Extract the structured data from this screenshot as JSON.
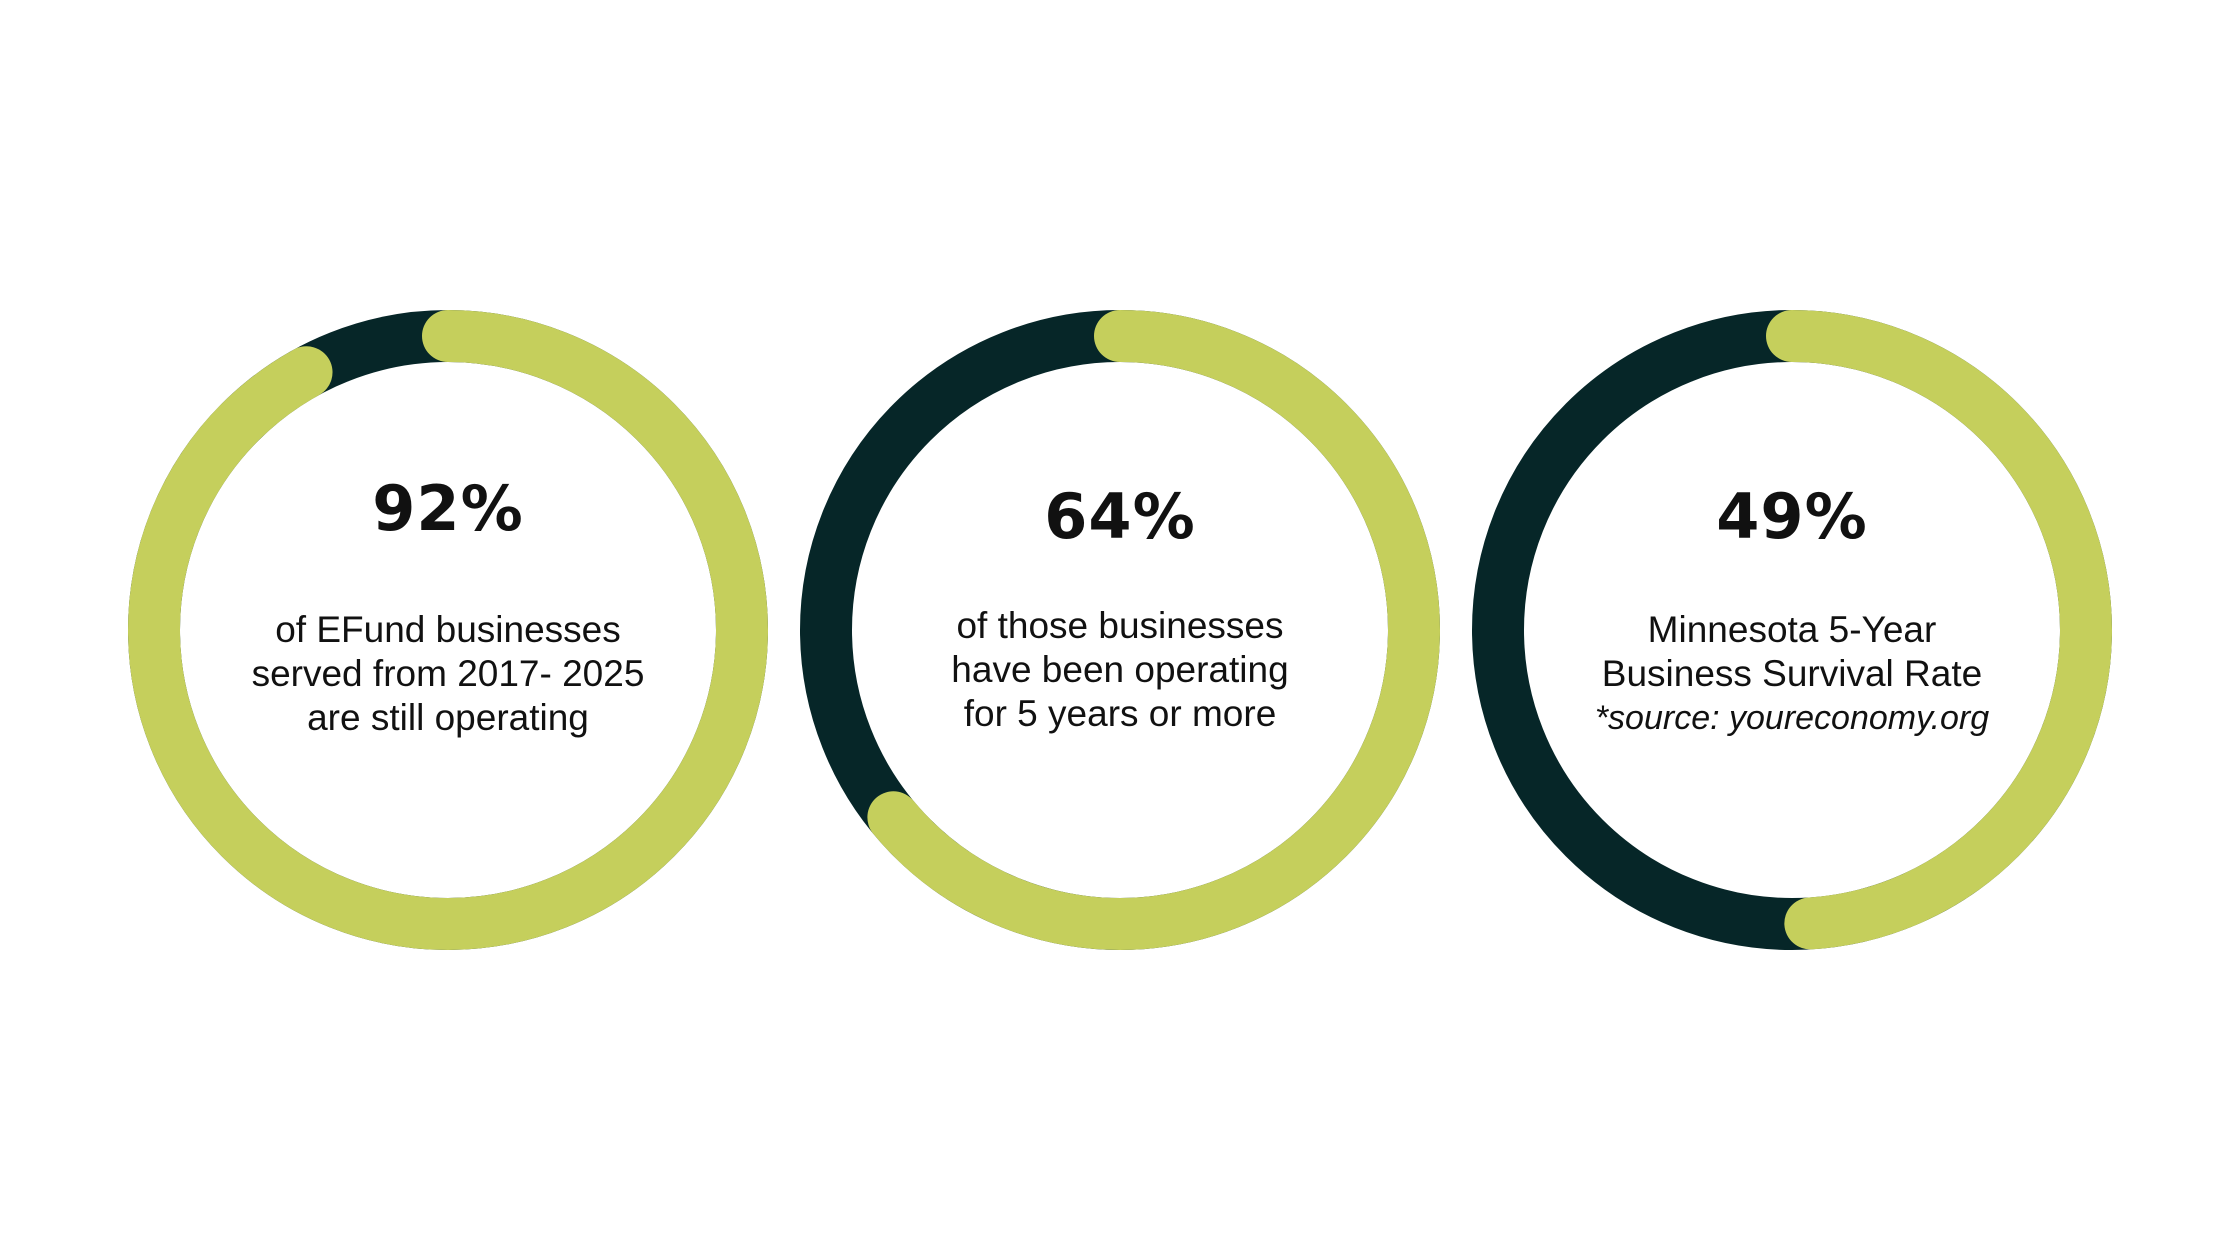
{
  "colors": {
    "filled": "#c5cf5c",
    "remainder": "#062628",
    "text": "#111111",
    "background": "#ffffff"
  },
  "chart_data": [
    {
      "type": "pie",
      "value": 92,
      "unit": "%",
      "label": "92%",
      "description_lines": [
        "of EFund businesses",
        "served from 2017- 2025",
        "are still operating"
      ]
    },
    {
      "type": "pie",
      "value": 64,
      "unit": "%",
      "label": "64%",
      "description_lines": [
        "of those businesses",
        "have been operating",
        "for 5 years or more"
      ]
    },
    {
      "type": "pie",
      "value": 49,
      "unit": "%",
      "label": "49%",
      "description_lines": [
        "Minnesota 5-Year",
        "Business Survival Rate"
      ],
      "source": "*source: youreconomy.org"
    }
  ]
}
